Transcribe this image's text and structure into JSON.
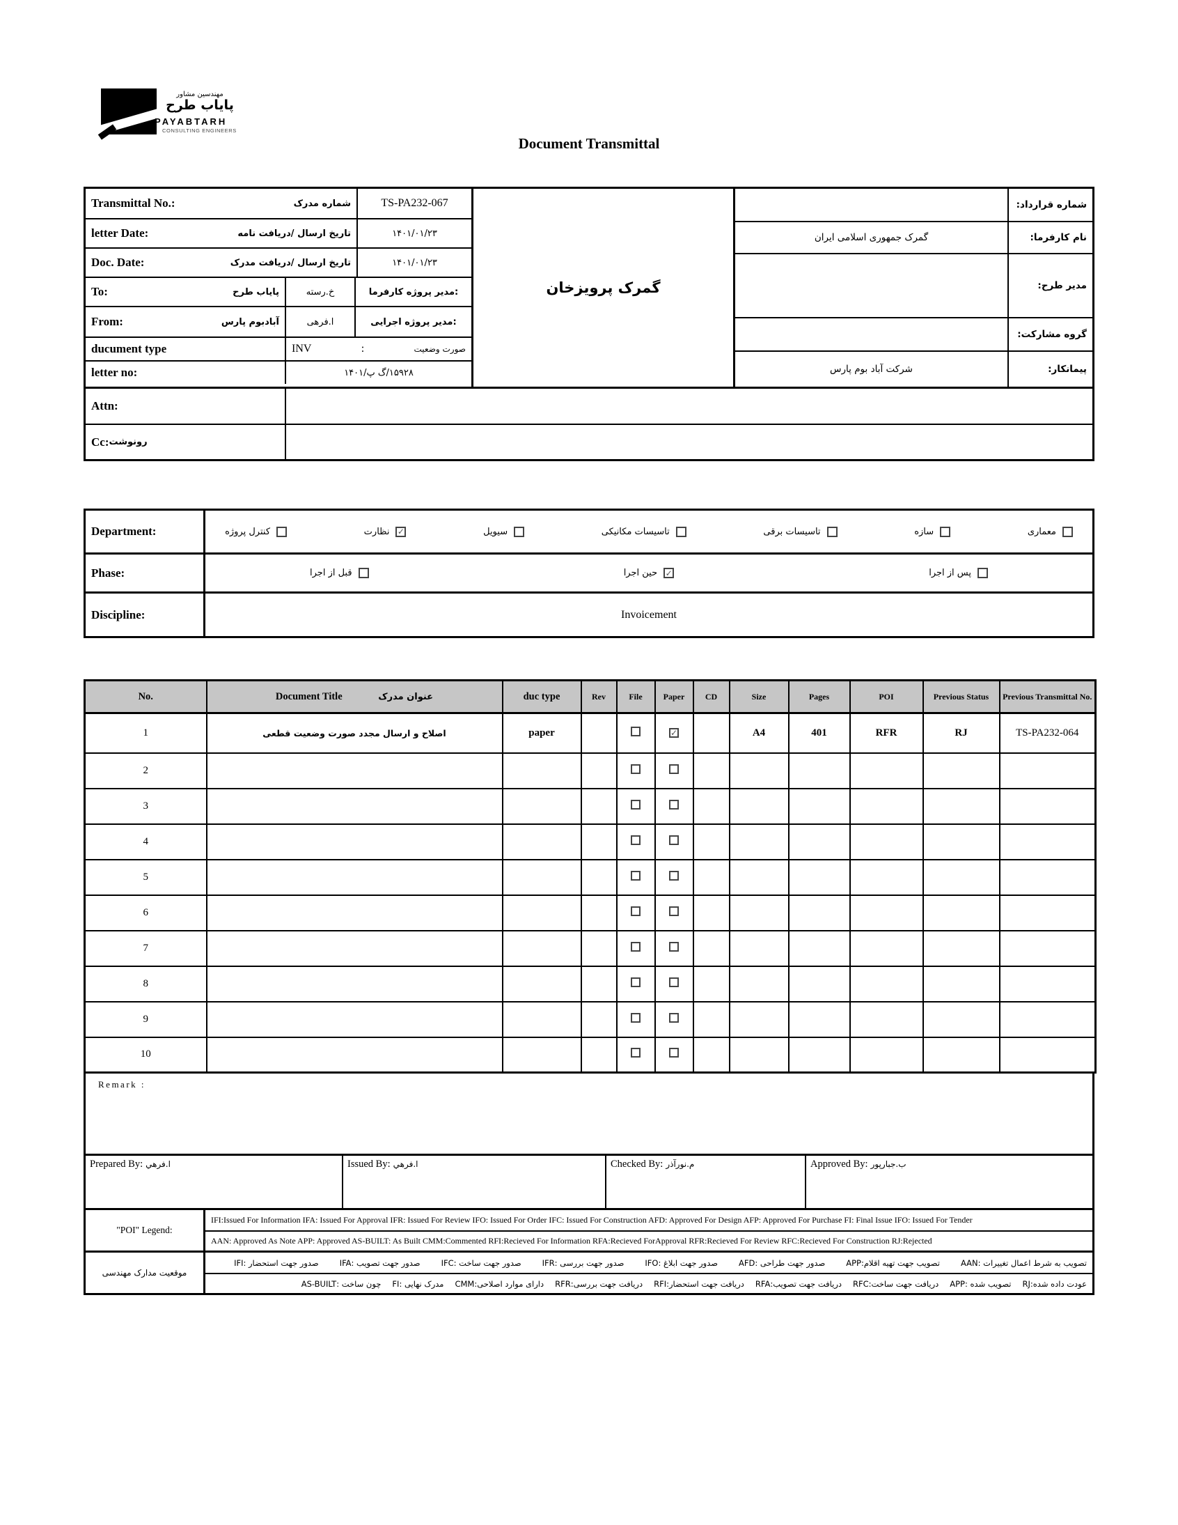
{
  "logo": {
    "fa_small": "مهندسین مشاور",
    "fa_large": "پایاب طرح",
    "latin": "PAYABTARH",
    "sub": "CONSULTING ENGINEERS"
  },
  "title": "Document Transmittal",
  "info": {
    "transmittal": {
      "label_en": "Transmittal No.:",
      "label_fa": "شماره مدرک",
      "value": "TS-PA232-067"
    },
    "letter_date": {
      "label_en": "letter Date:",
      "label_fa": "تاریخ ارسال /دریافت نامه",
      "value": "۱۴۰۱/۰۱/۲۳"
    },
    "doc_date": {
      "label_en": "Doc. Date:",
      "label_fa": "تاریخ ارسال /دریافت مدرک",
      "value": "۱۴۰۱/۰۱/۲۳"
    },
    "to": {
      "label_en": "To:",
      "label_fa": "پایاب طرح",
      "middle": "خ.رسته",
      "role": "مدیر پروژه کارفرما:"
    },
    "from": {
      "label_en": "From:",
      "label_fa": "آبادبوم پارس",
      "middle": "ا.فرهی",
      "role": "مدیر پروژه اجرایی:"
    },
    "doc_type": {
      "label_en": "ducument type",
      "value_en": "INV",
      "colon": ":",
      "value_fa": "صورت وضعیت"
    },
    "letter_no": {
      "label_en": "letter no:",
      "value": "۱۵۹۲۸/گ پ/۱۴۰۱"
    },
    "attn": {
      "label_en": "Attn:",
      "value": ""
    },
    "cc": {
      "label_en": "Cc:",
      "label_fa": "رونوشت",
      "value": ""
    },
    "center": "گمرک پرویزخان",
    "right_rows": [
      {
        "label": "شماره قرارداد:",
        "value": ""
      },
      {
        "label": "نام کارفرما:",
        "value": "گمرک جمهوری اسلامی ایران"
      },
      {
        "label": "مدیر طرح:",
        "value": ""
      },
      {
        "label": "گروه مشارکت:",
        "value": ""
      },
      {
        "label": "پیمانکار:",
        "value": "شرکت آباد بوم پارس"
      }
    ]
  },
  "classification": {
    "department": {
      "label": "Department:",
      "items": [
        {
          "label": "معماری",
          "checked": false
        },
        {
          "label": "سازه",
          "checked": false
        },
        {
          "label": "تاسیسات برقی",
          "checked": false
        },
        {
          "label": "تاسیسات مکانیکی",
          "checked": false
        },
        {
          "label": "سیویل",
          "checked": false
        },
        {
          "label": "نظارت",
          "checked": true
        },
        {
          "label": "کنترل پروژه",
          "checked": false
        }
      ]
    },
    "phase": {
      "label": "Phase:",
      "items": [
        {
          "label": "پس از اجرا",
          "checked": false
        },
        {
          "label": "حین اجرا",
          "checked": true
        },
        {
          "label": "قبل از اجرا",
          "checked": false
        }
      ]
    },
    "discipline": {
      "label": "Discipline:",
      "value": "Invoicement"
    }
  },
  "doc_table": {
    "headers": {
      "no": "No.",
      "title_en": "Document Title",
      "title_fa": "عنوان مدرک",
      "duc_type": "duc type",
      "rev": "Rev",
      "file": "File",
      "paper": "Paper",
      "cd": "CD",
      "size": "Size",
      "pages": "Pages",
      "poi": "POI",
      "prev_status": "Previous Status",
      "prev_transmittal": "Previous Transmittal No."
    },
    "rows": [
      {
        "no": "1",
        "title": "اصلاح و ارسال مجدد صورت وضعیت قطعی",
        "duc_type": "paper",
        "rev": "",
        "file": false,
        "paper": true,
        "cd": "",
        "size": "A4",
        "pages": "401",
        "poi": "RFR",
        "prev_status": "RJ",
        "prev_transmittal": "TS-PA232-064"
      },
      {
        "no": "2",
        "title": "",
        "duc_type": "",
        "rev": "",
        "file": false,
        "paper": false,
        "cd": "",
        "size": "",
        "pages": "",
        "poi": "",
        "prev_status": "",
        "prev_transmittal": ""
      },
      {
        "no": "3",
        "title": "",
        "duc_type": "",
        "rev": "",
        "file": false,
        "paper": false,
        "cd": "",
        "size": "",
        "pages": "",
        "poi": "",
        "prev_status": "",
        "prev_transmittal": ""
      },
      {
        "no": "4",
        "title": "",
        "duc_type": "",
        "rev": "",
        "file": false,
        "paper": false,
        "cd": "",
        "size": "",
        "pages": "",
        "poi": "",
        "prev_status": "",
        "prev_transmittal": ""
      },
      {
        "no": "5",
        "title": "",
        "duc_type": "",
        "rev": "",
        "file": false,
        "paper": false,
        "cd": "",
        "size": "",
        "pages": "",
        "poi": "",
        "prev_status": "",
        "prev_transmittal": ""
      },
      {
        "no": "6",
        "title": "",
        "duc_type": "",
        "rev": "",
        "file": false,
        "paper": false,
        "cd": "",
        "size": "",
        "pages": "",
        "poi": "",
        "prev_status": "",
        "prev_transmittal": ""
      },
      {
        "no": "7",
        "title": "",
        "duc_type": "",
        "rev": "",
        "file": false,
        "paper": false,
        "cd": "",
        "size": "",
        "pages": "",
        "poi": "",
        "prev_status": "",
        "prev_transmittal": ""
      },
      {
        "no": "8",
        "title": "",
        "duc_type": "",
        "rev": "",
        "file": false,
        "paper": false,
        "cd": "",
        "size": "",
        "pages": "",
        "poi": "",
        "prev_status": "",
        "prev_transmittal": ""
      },
      {
        "no": "9",
        "title": "",
        "duc_type": "",
        "rev": "",
        "file": false,
        "paper": false,
        "cd": "",
        "size": "",
        "pages": "",
        "poi": "",
        "prev_status": "",
        "prev_transmittal": ""
      },
      {
        "no": "10",
        "title": "",
        "duc_type": "",
        "rev": "",
        "file": false,
        "paper": false,
        "cd": "",
        "size": "",
        "pages": "",
        "poi": "",
        "prev_status": "",
        "prev_transmittal": ""
      }
    ]
  },
  "remark_label": "Remark :",
  "signatures": [
    {
      "label": "Prepared By:",
      "name": "ا.فرهي"
    },
    {
      "label": "Issued By:",
      "name": "ا.فرهي"
    },
    {
      "label": "Checked By:",
      "name": "م.نورآذر"
    },
    {
      "label": "Approved By:",
      "name": "ب.جبارپور"
    }
  ],
  "legend": {
    "poi_label": "\"POI\" Legend:",
    "fa_label": "موقعیت مدارک مهندسی",
    "en_line1": "IFI:Issued For Information  IFA: Issued For Approval  IFR: Issued For Review   IFO: Issued For Order  IFC: Issued For Construction AFD: Approved For Design AFP: Approved For Purchase  FI: Final Issue  IFO: Issued For Tender",
    "en_line2": "AAN: Approved As Note  APP: Approved  AS-BUILT: As Built CMM:Commented  RFI:Recieved For Information   RFA:Recieved ForApproval   RFR:Recieved For Review  RFC:Recieved For Construction  RJ:Rejected",
    "fa_line1_items": [
      "تصویب به شرط اعمال تغییرات :AAN",
      "تصویب جهت تهیه اقلام:APP",
      "صدور جهت طراحی :AFD",
      "صدور جهت ابلاغ :IFO",
      "صدور جهت بررسی :IFR",
      "صدور جهت ساخت :IFC",
      "صدور جهت تصویب :IFA",
      "صدور جهت استحضار :IFI"
    ],
    "fa_line2_items": [
      "عودت داده شده:RJ",
      "تصویب شده :APP",
      "دریافت جهت ساخت:RFC",
      "دریافت جهت تصویب:RFA",
      "دریافت جهت استحضار:RFI",
      "دریافت جهت بررسی:RFR",
      "دارای موارد اصلاحی:CMM",
      "مدرک نهایی :FI",
      "چون ساخت :AS-BUILT"
    ]
  }
}
